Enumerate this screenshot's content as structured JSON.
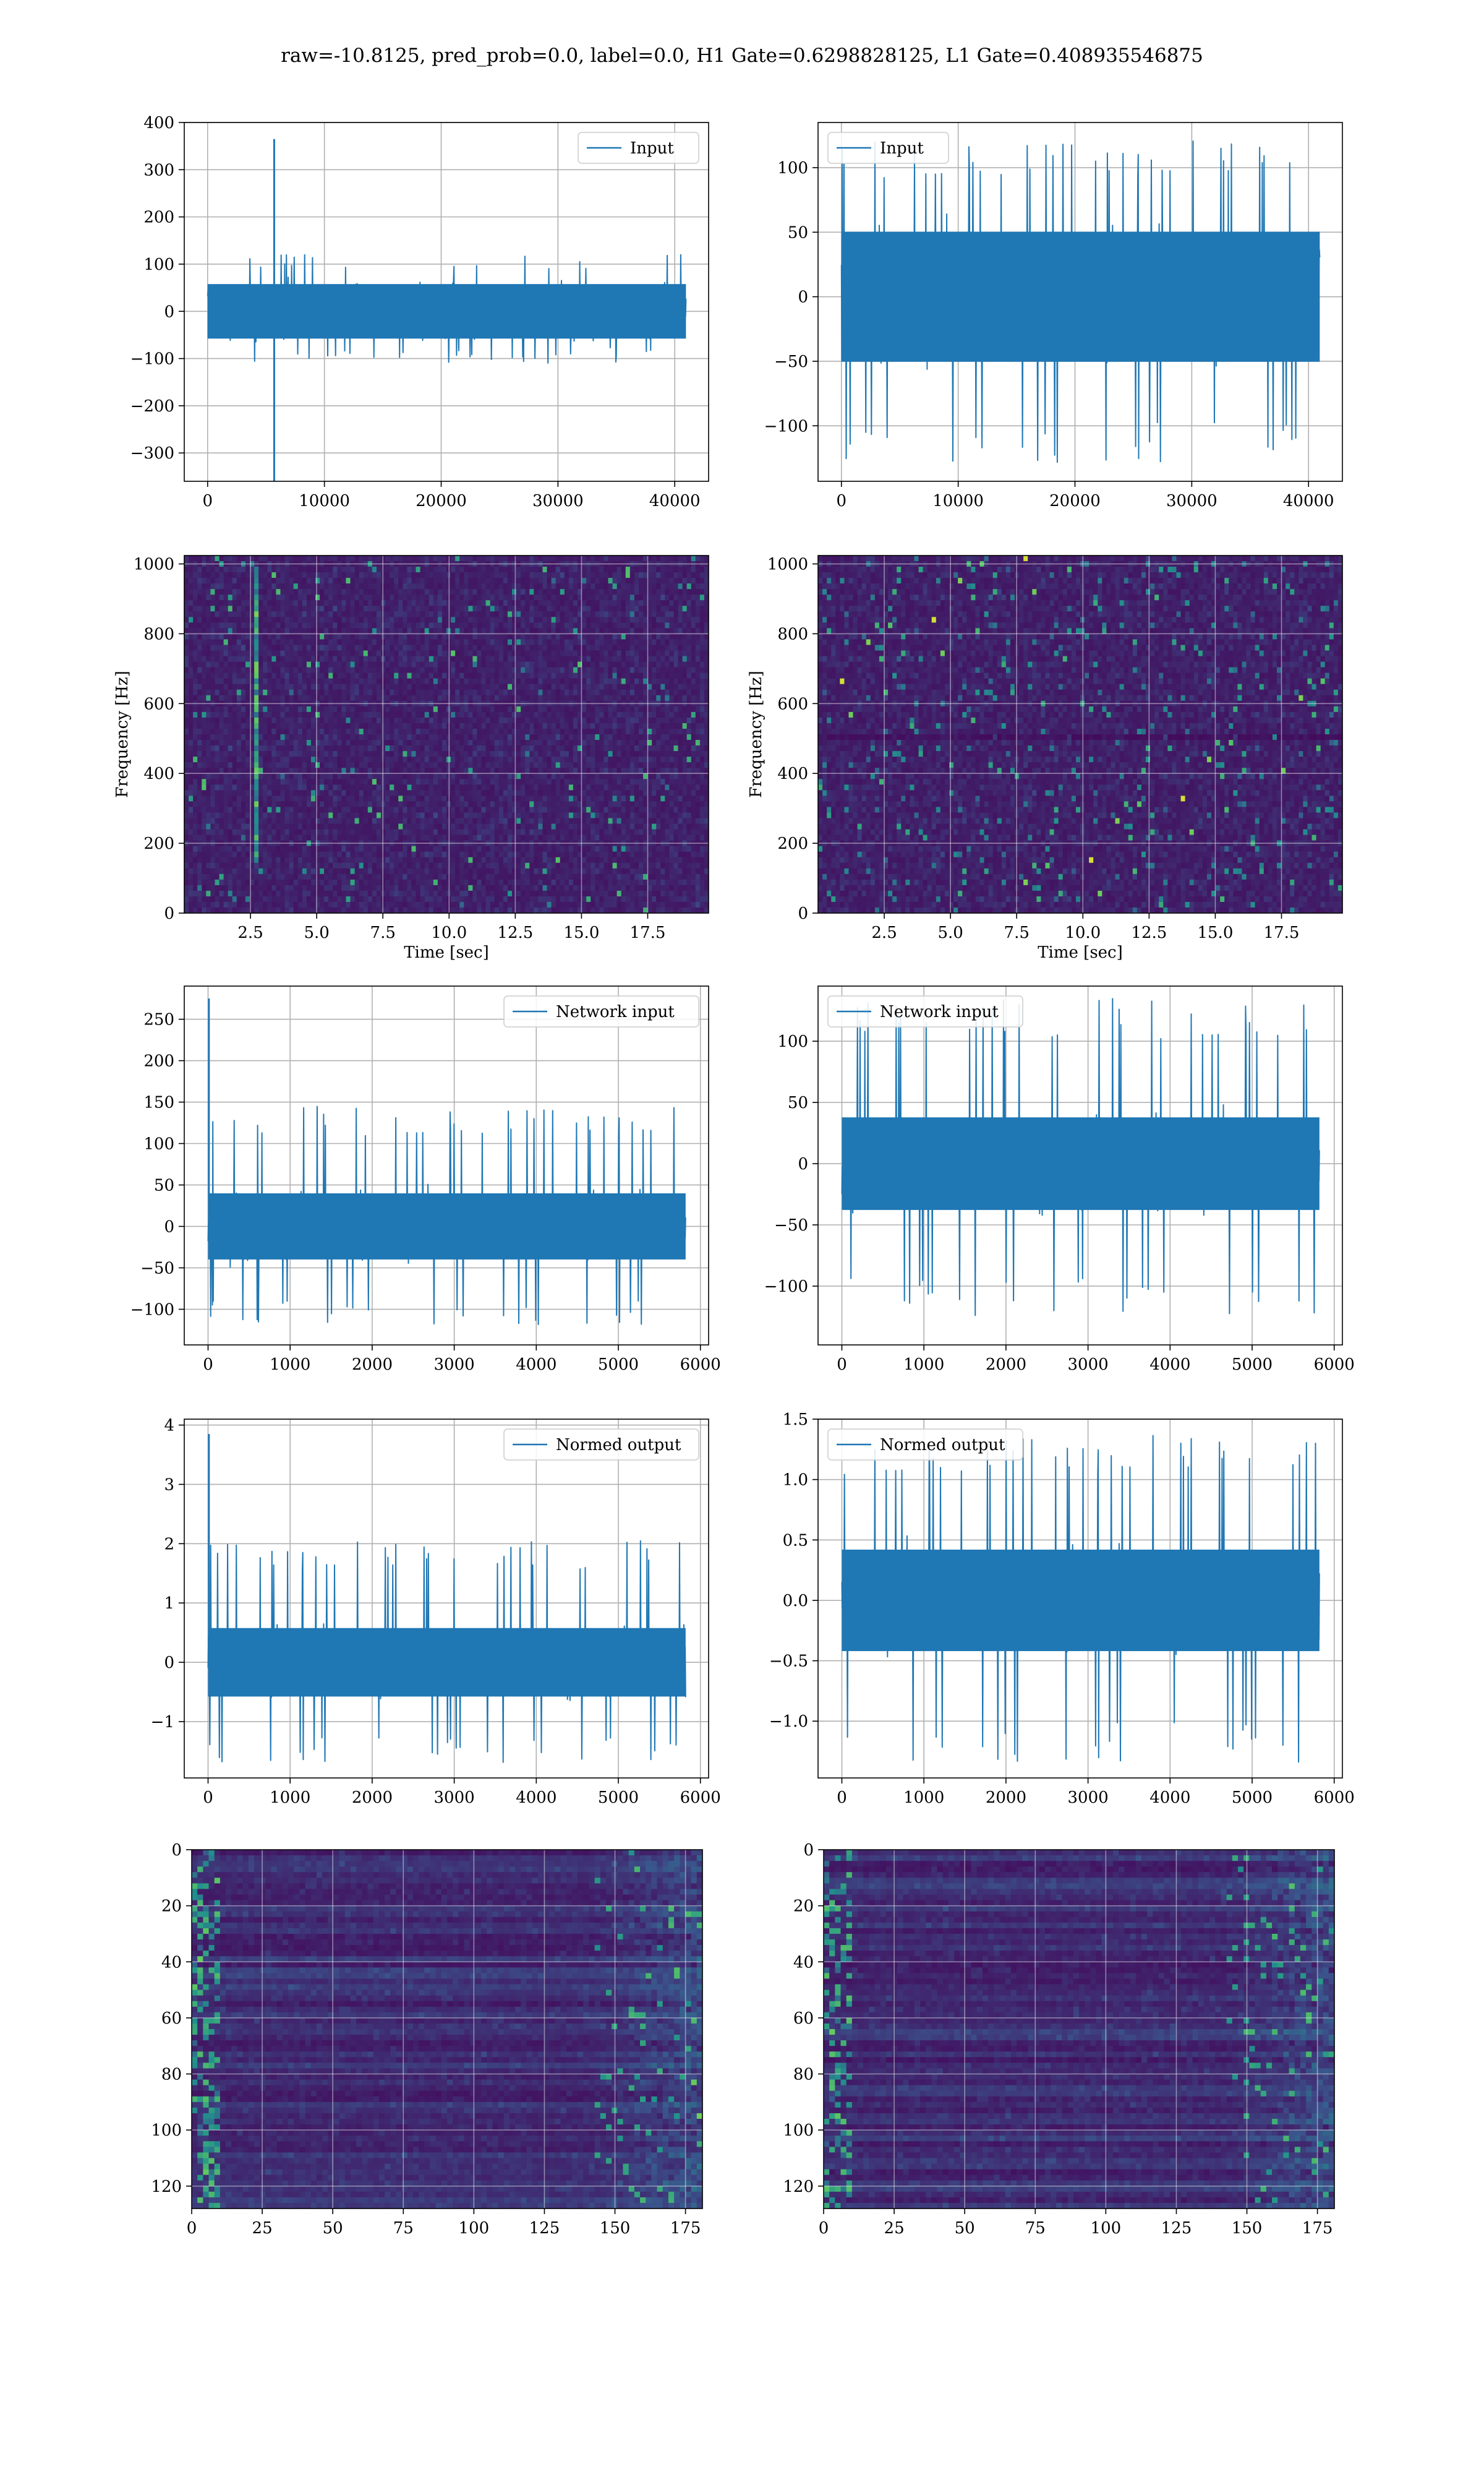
{
  "figure": {
    "title": "raw=-10.8125, pred_prob=0.0, label=0.0, H1 Gate=0.6298828125, L1 Gate=0.408935546875"
  },
  "colors": {
    "line": "#1f77b4",
    "grid": "#b0b0b0",
    "viridis": [
      "#440154",
      "#3b528b",
      "#21918c",
      "#5ec962",
      "#fde725"
    ]
  },
  "chart_data": [
    {
      "type": "line",
      "legend": "Input",
      "legend_loc": "upper right",
      "xlim": [
        -2000,
        42900
      ],
      "ylim": [
        -360,
        400
      ],
      "xticks": [
        0,
        10000,
        20000,
        30000,
        40000
      ],
      "yticks": [
        -300,
        -200,
        -100,
        0,
        100,
        200,
        300,
        400
      ],
      "grid": true,
      "signal": {
        "x_start": 0,
        "x_end": 40960,
        "noise_amplitude": 55,
        "envelope": [
          -110,
          120
        ],
        "spikes": [
          {
            "x": 5700,
            "y": 365
          },
          {
            "x": 5700,
            "y": -360
          }
        ]
      }
    },
    {
      "type": "line",
      "legend": "Input",
      "legend_loc": "upper left",
      "xlim": [
        -2000,
        42900
      ],
      "ylim": [
        -143,
        135
      ],
      "xticks": [
        0,
        10000,
        20000,
        30000,
        40000
      ],
      "yticks": [
        -100,
        -50,
        0,
        50,
        100
      ],
      "grid": true,
      "signal": {
        "x_start": 0,
        "x_end": 40960,
        "noise_amplitude": 48,
        "envelope": [
          -130,
          122
        ]
      }
    },
    {
      "type": "heatmap",
      "kind": "spectrogram",
      "xlabel": "Time [sec]",
      "ylabel": "Frequency [Hz]",
      "xlim": [
        0,
        19.8
      ],
      "ylim": [
        0,
        1024
      ],
      "xticks": [
        2.5,
        5.0,
        7.5,
        10.0,
        12.5,
        15.0,
        17.5
      ],
      "xtick_labels": [
        "2.5",
        "5.0",
        "7.5",
        "10.0",
        "12.5",
        "15.0",
        "17.5"
      ],
      "yticks": [
        0,
        200,
        400,
        600,
        800,
        1000
      ],
      "grid": true,
      "colormap": "viridis",
      "feature": {
        "vertical_line_at_sec": 2.7,
        "freq_range": [
          150,
          1000
        ]
      }
    },
    {
      "type": "heatmap",
      "kind": "spectrogram",
      "xlabel": "Time [sec]",
      "ylabel": "Frequency [Hz]",
      "xlim": [
        0,
        19.8
      ],
      "ylim": [
        0,
        1024
      ],
      "xticks": [
        2.5,
        5.0,
        7.5,
        10.0,
        12.5,
        15.0,
        17.5
      ],
      "xtick_labels": [
        "2.5",
        "5.0",
        "7.5",
        "10.0",
        "12.5",
        "15.0",
        "17.5"
      ],
      "yticks": [
        0,
        200,
        400,
        600,
        800,
        1000
      ],
      "grid": true,
      "colormap": "viridis",
      "feature": {
        "horizontal_band_hz": 500
      }
    },
    {
      "type": "line",
      "legend": "Network input",
      "legend_loc": "upper right",
      "xlim": [
        -290,
        6100
      ],
      "ylim": [
        -143,
        290
      ],
      "xticks": [
        0,
        1000,
        2000,
        3000,
        4000,
        5000,
        6000
      ],
      "yticks": [
        -100,
        -50,
        0,
        50,
        100,
        150,
        200,
        250
      ],
      "grid": true,
      "signal": {
        "x_start": 0,
        "x_end": 5820,
        "noise_amplitude": 38,
        "envelope": [
          -120,
          145
        ],
        "spikes": [
          {
            "x": 10,
            "y": 275
          }
        ]
      }
    },
    {
      "type": "line",
      "legend": "Network input",
      "legend_loc": "upper left",
      "xlim": [
        -290,
        6100
      ],
      "ylim": [
        -148,
        145
      ],
      "xticks": [
        0,
        1000,
        2000,
        3000,
        4000,
        5000,
        6000
      ],
      "yticks": [
        -100,
        -50,
        0,
        50,
        100
      ],
      "grid": true,
      "signal": {
        "x_start": 0,
        "x_end": 5820,
        "noise_amplitude": 36,
        "envelope": [
          -125,
          135
        ]
      }
    },
    {
      "type": "line",
      "legend": "Normed output",
      "legend_loc": "upper right",
      "xlim": [
        -290,
        6100
      ],
      "ylim": [
        -1.95,
        4.1
      ],
      "xticks": [
        0,
        1000,
        2000,
        3000,
        4000,
        5000,
        6000
      ],
      "yticks": [
        -1,
        0,
        1,
        2,
        3,
        4
      ],
      "grid": true,
      "signal": {
        "x_start": 0,
        "x_end": 5820,
        "noise_amplitude": 0.55,
        "envelope": [
          -1.7,
          2.05
        ],
        "spikes": [
          {
            "x": 10,
            "y": 3.85
          }
        ]
      }
    },
    {
      "type": "line",
      "legend": "Normed output",
      "legend_loc": "upper left",
      "xlim": [
        -290,
        6100
      ],
      "ylim": [
        -1.47,
        1.5
      ],
      "xticks": [
        0,
        1000,
        2000,
        3000,
        4000,
        5000,
        6000
      ],
      "yticks": [
        -1.0,
        -0.5,
        0.0,
        0.5,
        1.0,
        1.5
      ],
      "ytick_labels": [
        "−1.0",
        "−0.5",
        "0.0",
        "0.5",
        "1.0",
        "1.5"
      ],
      "grid": true,
      "signal": {
        "x_start": 0,
        "x_end": 5820,
        "noise_amplitude": 0.4,
        "envelope": [
          -1.35,
          1.38
        ]
      }
    },
    {
      "type": "heatmap",
      "kind": "feature-map",
      "xlim": [
        0,
        181
      ],
      "ylim": [
        128,
        0
      ],
      "xticks": [
        0,
        25,
        50,
        75,
        100,
        125,
        150,
        175
      ],
      "yticks": [
        0,
        20,
        40,
        60,
        80,
        100,
        120
      ],
      "grid": true,
      "colormap": "viridis",
      "feature": {
        "bright_left_columns": true,
        "bright_right_columns": true
      }
    },
    {
      "type": "heatmap",
      "kind": "feature-map",
      "xlim": [
        0,
        181
      ],
      "ylim": [
        128,
        0
      ],
      "xticks": [
        0,
        25,
        50,
        75,
        100,
        125,
        150,
        175
      ],
      "yticks": [
        0,
        20,
        40,
        60,
        80,
        100,
        120
      ],
      "grid": true,
      "colormap": "viridis",
      "feature": {
        "bright_left_columns": true,
        "bright_right_columns": true
      }
    }
  ]
}
